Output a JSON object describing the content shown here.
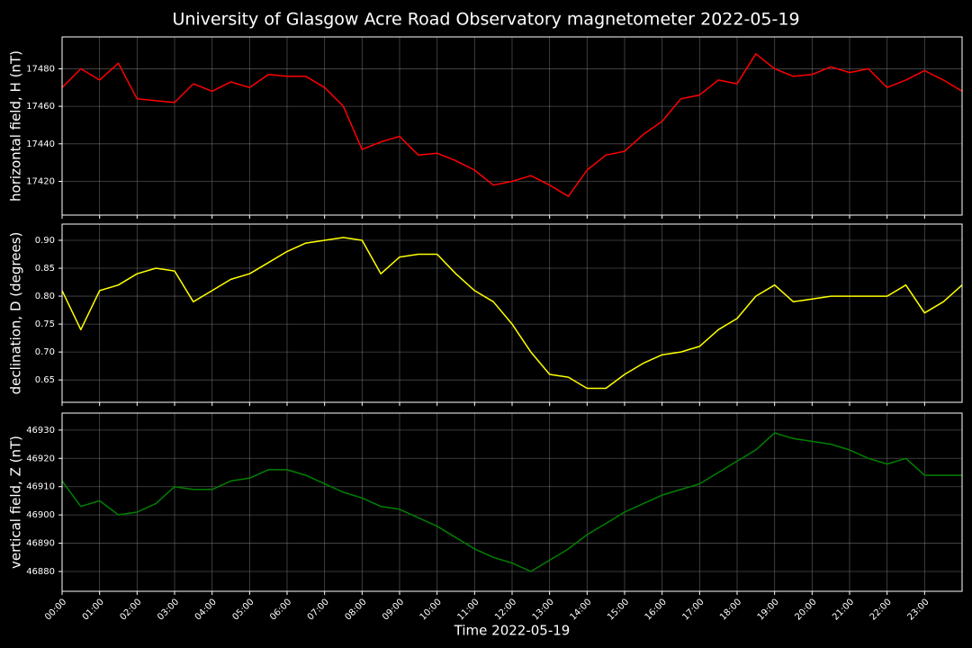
{
  "title": "University of Glasgow Acre Road Observatory magnetometer 2022-05-19",
  "chart_data": [
    {
      "type": "line",
      "ylabel": "horizontal field, H (nT)",
      "color": "#ff0000",
      "x": [
        0,
        0.5,
        1,
        1.5,
        2,
        2.5,
        3,
        3.5,
        4,
        4.5,
        5,
        5.5,
        6,
        6.5,
        7,
        7.5,
        8,
        8.5,
        9,
        9.5,
        10,
        10.5,
        11,
        11.5,
        12,
        12.5,
        13,
        13.5,
        14,
        14.5,
        15,
        15.5,
        16,
        16.5,
        17,
        17.5,
        18,
        18.5,
        19,
        19.5,
        20,
        20.5,
        21,
        21.5,
        22,
        22.5,
        23,
        23.5,
        24
      ],
      "values": [
        17470,
        17480,
        17474,
        17483,
        17464,
        17463,
        17462,
        17472,
        17468,
        17473,
        17470,
        17477,
        17476,
        17476,
        17470,
        17460,
        17437,
        17441,
        17444,
        17434,
        17435,
        17431,
        17426,
        17418,
        17420,
        17423,
        17418,
        17412,
        17426,
        17434,
        17436,
        17445,
        17452,
        17464,
        17466,
        17474,
        17472,
        17488,
        17480,
        17476,
        17477,
        17481,
        17478,
        17480,
        17470,
        17474,
        17479,
        17474,
        17468
      ],
      "xlim": [
        0,
        24
      ],
      "ylim": [
        17402,
        17497
      ],
      "xticks": [
        0,
        1,
        2,
        3,
        4,
        5,
        6,
        7,
        8,
        9,
        10,
        11,
        12,
        13,
        14,
        15,
        16,
        17,
        18,
        19,
        20,
        21,
        22,
        23
      ],
      "yticks": [
        17420,
        17440,
        17460,
        17480
      ],
      "grid": true
    },
    {
      "type": "line",
      "ylabel": "declination, D (degrees)",
      "color": "#ffff00",
      "x": [
        0,
        0.5,
        1,
        1.5,
        2,
        2.5,
        3,
        3.5,
        4,
        4.5,
        5,
        5.5,
        6,
        6.5,
        7,
        7.5,
        8,
        8.5,
        9,
        9.5,
        10,
        10.5,
        11,
        11.5,
        12,
        12.5,
        13,
        13.5,
        14,
        14.5,
        15,
        15.5,
        16,
        16.5,
        17,
        17.5,
        18,
        18.5,
        19,
        19.5,
        20,
        20.5,
        21,
        21.5,
        22,
        22.5,
        23,
        23.5,
        24
      ],
      "values": [
        0.81,
        0.74,
        0.81,
        0.82,
        0.84,
        0.85,
        0.845,
        0.79,
        0.81,
        0.83,
        0.84,
        0.86,
        0.88,
        0.895,
        0.9,
        0.905,
        0.9,
        0.84,
        0.87,
        0.875,
        0.875,
        0.84,
        0.81,
        0.79,
        0.75,
        0.7,
        0.66,
        0.655,
        0.635,
        0.635,
        0.66,
        0.68,
        0.695,
        0.7,
        0.71,
        0.74,
        0.76,
        0.8,
        0.82,
        0.79,
        0.795,
        0.8,
        0.8,
        0.8,
        0.8,
        0.82,
        0.77,
        0.79,
        0.82
      ],
      "xlim": [
        0,
        24
      ],
      "ylim": [
        0.61,
        0.929
      ],
      "xticks": [
        0,
        1,
        2,
        3,
        4,
        5,
        6,
        7,
        8,
        9,
        10,
        11,
        12,
        13,
        14,
        15,
        16,
        17,
        18,
        19,
        20,
        21,
        22,
        23
      ],
      "yticks": [
        0.65,
        {
          "value": 0.7,
          "label": "0.70"
        },
        0.75,
        {
          "value": 0.8,
          "label": "0.80"
        },
        0.85,
        {
          "value": 0.9,
          "label": "0.90"
        }
      ],
      "grid": true
    },
    {
      "type": "line",
      "ylabel": "vertical field, Z (nT)",
      "xlabel": "Time 2022-05-19",
      "color": "#008000",
      "x": [
        0,
        0.5,
        1,
        1.5,
        2,
        2.5,
        3,
        3.5,
        4,
        4.5,
        5,
        5.5,
        6,
        6.5,
        7,
        7.5,
        8,
        8.5,
        9,
        9.5,
        10,
        10.5,
        11,
        11.5,
        12,
        12.5,
        13,
        13.5,
        14,
        14.5,
        15,
        15.5,
        16,
        16.5,
        17,
        17.5,
        18,
        18.5,
        19,
        19.5,
        20,
        20.5,
        21,
        21.5,
        22,
        22.5,
        23,
        23.5,
        24
      ],
      "values": [
        46912,
        46903,
        46905,
        46900,
        46901,
        46904,
        46910,
        46909,
        46909,
        46912,
        46913,
        46916,
        46916,
        46914,
        46911,
        46908,
        46906,
        46903,
        46902,
        46899,
        46896,
        46892,
        46888,
        46885,
        46883,
        46880,
        46884,
        46888,
        46893,
        46897,
        46901,
        46904,
        46907,
        46909,
        46911,
        46915,
        46919,
        46923,
        46929,
        46927,
        46926,
        46925,
        46923,
        46920,
        46918,
        46920,
        46914,
        46914,
        46914
      ],
      "xlim": [
        0,
        24
      ],
      "ylim": [
        46873,
        46936
      ],
      "xticks": [
        {
          "value": 0,
          "label": "00:00"
        },
        {
          "value": 1,
          "label": "01:00"
        },
        {
          "value": 2,
          "label": "02:00"
        },
        {
          "value": 3,
          "label": "03:00"
        },
        {
          "value": 4,
          "label": "04:00"
        },
        {
          "value": 5,
          "label": "05:00"
        },
        {
          "value": 6,
          "label": "06:00"
        },
        {
          "value": 7,
          "label": "07:00"
        },
        {
          "value": 8,
          "label": "08:00"
        },
        {
          "value": 9,
          "label": "09:00"
        },
        {
          "value": 10,
          "label": "10:00"
        },
        {
          "value": 11,
          "label": "11:00"
        },
        {
          "value": 12,
          "label": "12:00"
        },
        {
          "value": 13,
          "label": "13:00"
        },
        {
          "value": 14,
          "label": "14:00"
        },
        {
          "value": 15,
          "label": "15:00"
        },
        {
          "value": 16,
          "label": "16:00"
        },
        {
          "value": 17,
          "label": "17:00"
        },
        {
          "value": 18,
          "label": "18:00"
        },
        {
          "value": 19,
          "label": "19:00"
        },
        {
          "value": 20,
          "label": "20:00"
        },
        {
          "value": 21,
          "label": "21:00"
        },
        {
          "value": 22,
          "label": "22:00"
        },
        {
          "value": 23,
          "label": "23:00"
        }
      ],
      "yticks": [
        46880,
        46890,
        46900,
        46910,
        46920,
        46930
      ],
      "grid": true
    }
  ]
}
